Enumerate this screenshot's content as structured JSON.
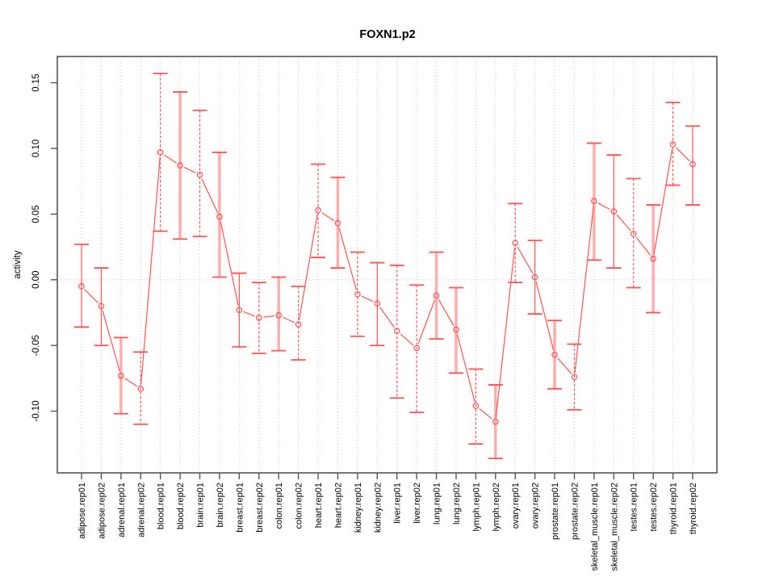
{
  "chart_data": {
    "type": "line",
    "title": "FOXN1.p2",
    "xlabel": "",
    "ylabel": "activity",
    "ylim": [
      -0.147,
      0.17
    ],
    "yticks": [
      0.15,
      0.1,
      0.05,
      0.0,
      -0.05,
      -0.1
    ],
    "ytick_labels": [
      "0.15",
      "0.10",
      "0.05",
      "0.00",
      "-0.05",
      "-0.10"
    ],
    "grid": "vertical dotted gridline at each category; horizontal dotted line at y=0",
    "legend_position": "none",
    "marker": "open-circle",
    "categories": [
      "adipose.rep01",
      "adipose.rep02",
      "adrenal.rep01",
      "adrenal.rep02",
      "blood.rep01",
      "blood.rep02",
      "brain.rep01",
      "brain.rep02",
      "breast.rep01",
      "breast.rep02",
      "colon.rep01",
      "colon.rep02",
      "heart.rep01",
      "heart.rep02",
      "kidney.rep01",
      "kidney.rep02",
      "liver.rep01",
      "liver.rep02",
      "lung.rep01",
      "lung.rep02",
      "lymph.rep01",
      "lymph.rep02",
      "ovary.rep01",
      "ovary.rep02",
      "prostate.rep01",
      "prostate.rep02",
      "skeletal_muscle.rep01",
      "skeletal_muscle.rep02",
      "testes.rep01",
      "testes.rep02",
      "thyroid.rep01",
      "thyroid.rep02"
    ],
    "series": [
      {
        "name": "activity",
        "values": [
          -0.005,
          -0.02,
          -0.073,
          -0.083,
          0.097,
          0.087,
          0.08,
          0.048,
          -0.023,
          -0.029,
          -0.027,
          -0.034,
          0.053,
          0.043,
          -0.011,
          -0.018,
          -0.039,
          -0.052,
          -0.012,
          -0.038,
          -0.096,
          -0.108,
          0.028,
          0.002,
          -0.057,
          -0.074,
          0.06,
          0.052,
          0.035,
          0.016,
          0.103,
          0.088
        ],
        "ci_low": [
          -0.036,
          -0.05,
          -0.102,
          -0.11,
          0.037,
          0.031,
          0.033,
          0.002,
          -0.051,
          -0.056,
          -0.054,
          -0.061,
          0.017,
          0.009,
          -0.043,
          -0.05,
          -0.09,
          -0.101,
          -0.045,
          -0.071,
          -0.125,
          -0.136,
          -0.002,
          -0.026,
          -0.083,
          -0.099,
          0.015,
          0.009,
          -0.006,
          -0.025,
          0.072,
          0.057
        ],
        "ci_high": [
          0.027,
          0.009,
          -0.044,
          -0.055,
          0.157,
          0.143,
          0.129,
          0.097,
          0.005,
          -0.002,
          0.002,
          -0.005,
          0.088,
          0.078,
          0.021,
          0.013,
          0.011,
          -0.004,
          0.021,
          -0.006,
          -0.068,
          -0.08,
          0.058,
          0.03,
          -0.031,
          -0.049,
          0.104,
          0.095,
          0.077,
          0.057,
          0.135,
          0.117
        ],
        "bar_styles": [
          "solid",
          "solid",
          "thick",
          "dashed",
          "dashed",
          "thick",
          "dashed",
          "thick",
          "solid",
          "dashed",
          "thick",
          "dashed",
          "dashed",
          "thick",
          "dashed",
          "solid",
          "dashed",
          "dashed",
          "thick",
          "thick",
          "dashed",
          "thick",
          "dashed",
          "solid",
          "thick",
          "dashed",
          "thick",
          "solid",
          "dashed",
          "thick",
          "dashed",
          "solid"
        ]
      }
    ],
    "colors": {
      "series": "#ff5252",
      "thick_bar": "#ffadad",
      "gridline": "#c9c9c9",
      "frame": "#545454",
      "text": "#000000",
      "background": "#ffffff"
    }
  }
}
